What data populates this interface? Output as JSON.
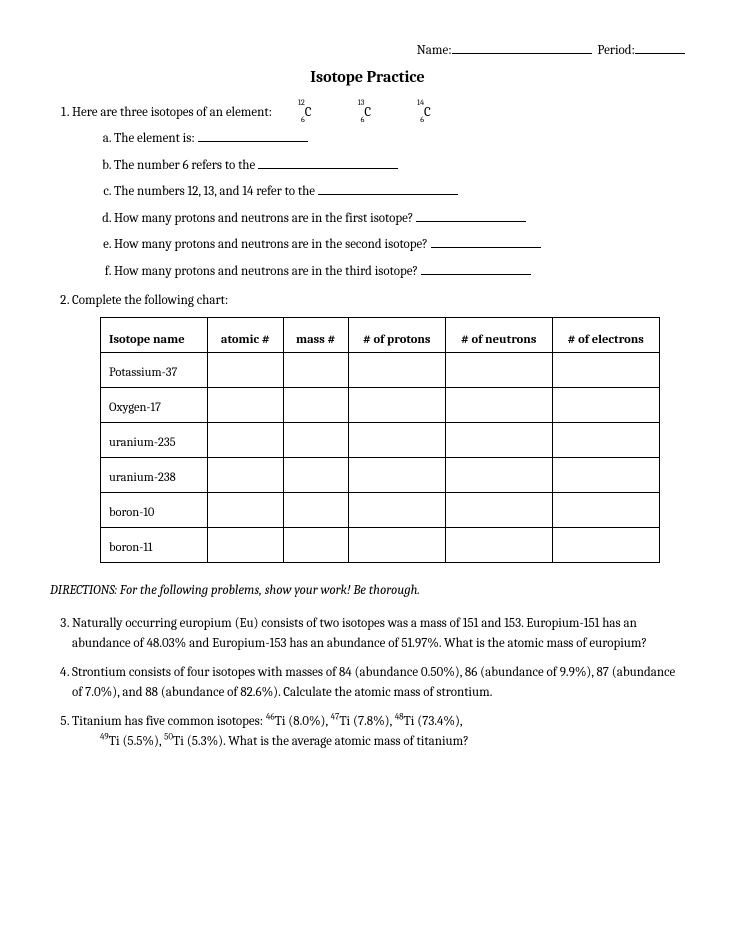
{
  "header": {
    "name_label": "Name:",
    "period_label": "Period:"
  },
  "title": "Isotope Practice",
  "q1": {
    "prompt": "Here are three isotopes of an element:",
    "isotopes": [
      {
        "mass": "12",
        "atomic": "6",
        "symbol": "C"
      },
      {
        "mass": "13",
        "atomic": "6",
        "symbol": "C"
      },
      {
        "mass": "14",
        "atomic": "6",
        "symbol": "C"
      }
    ],
    "subs": {
      "a": "The element is: ",
      "b": "The number 6 refers to the ",
      "c": "The numbers 12, 13, and 14 refer to the ",
      "d": "How many protons and neutrons are in the first isotope? ",
      "e": "How many protons and neutrons are in the second isotope? ",
      "f": "How many protons and neutrons are in the third isotope? "
    }
  },
  "q2": {
    "prompt": "Complete the following chart:",
    "headers": [
      "Isotope name",
      "atomic #",
      "mass #",
      "# of protons",
      "# of neutrons",
      "# of electrons"
    ],
    "rows": [
      "Potassium-37",
      "Oxygen-17",
      "uranium-235",
      "uranium-238",
      "boron-10",
      "boron-11"
    ]
  },
  "directions": "DIRECTIONS:  For the following problems, show your work!  Be thorough.",
  "q3": "Naturally occurring europium (Eu) consists of two isotopes was a mass of 151 and 153.  Europium-151 has an abundance of 48.03% and Europium-153 has an abundance of 51.97%.  What is the atomic mass of europium?",
  "q4": "Strontium consists of four isotopes with masses of 84 (abundance 0.50%), 86 (abundance of 9.9%), 87 (abundance of 7.0%), and 88 (abundance of 82.6%).  Calculate the atomic mass of strontium.",
  "q5": {
    "line1_pre": "Titanium has five common isotopes: ",
    "iso": [
      {
        "mass": "46",
        "sym": "Ti",
        "pct": " (8.0%), "
      },
      {
        "mass": "47",
        "sym": "Ti",
        "pct": " (7.8%), "
      },
      {
        "mass": "48",
        "sym": "Ti",
        "pct": " (73.4%),"
      }
    ],
    "line2_iso": [
      {
        "mass": "49",
        "sym": "Ti",
        "pct": " (5.5%), "
      },
      {
        "mass": "50",
        "sym": "Ti",
        "pct": " (5.3%). "
      }
    ],
    "line2_end": "What is the average atomic mass of titanium?"
  }
}
